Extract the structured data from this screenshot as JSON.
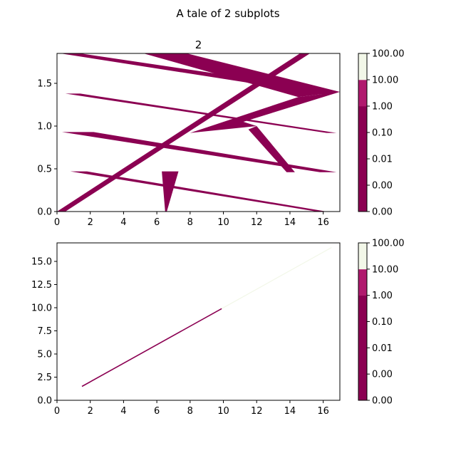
{
  "figure": {
    "suptitle": "A tale of 2 subplots"
  },
  "colors": {
    "dark": "#8b0052",
    "mid": "#b01a6e",
    "light": "#f2f7e8",
    "bg": "#ffffff"
  },
  "chart_data": [
    {
      "type": "contourf",
      "title": "2",
      "xlim": [
        0,
        17
      ],
      "ylim": [
        0,
        1.85
      ],
      "xticks": [
        "0",
        "2",
        "4",
        "6",
        "8",
        "10",
        "12",
        "14",
        "16"
      ],
      "yticks": [
        "0.0",
        "0.5",
        "1.0",
        "1.5"
      ],
      "x_tick_values": [
        0,
        2,
        4,
        6,
        8,
        10,
        12,
        14,
        16
      ],
      "y_tick_values": [
        0,
        0.5,
        1.0,
        1.5
      ],
      "filled_regions": [
        [
          [
            0,
            0
          ],
          [
            0.5,
            0
          ],
          [
            15.2,
            1.85
          ],
          [
            14.6,
            1.85
          ]
        ],
        [
          [
            0.2,
            1.85
          ],
          [
            1.4,
            1.85
          ],
          [
            17,
            1.4
          ],
          [
            16.0,
            1.37
          ]
        ],
        [
          [
            5.2,
            1.85
          ],
          [
            7.8,
            1.85
          ],
          [
            17,
            1.4
          ],
          [
            14.5,
            1.34
          ]
        ],
        [
          [
            0.5,
            1.38
          ],
          [
            1.4,
            1.38
          ],
          [
            16.8,
            0.92
          ],
          [
            16.2,
            0.92
          ]
        ],
        [
          [
            8.0,
            0.92
          ],
          [
            14.5,
            1.34
          ],
          [
            17,
            1.4
          ],
          [
            11.2,
            1.05
          ],
          [
            12.0,
            1.0
          ]
        ],
        [
          [
            11.5,
            0.96
          ],
          [
            12.0,
            1.0
          ],
          [
            14.3,
            0.46
          ],
          [
            13.8,
            0.46
          ]
        ],
        [
          [
            0.3,
            0.93
          ],
          [
            2.2,
            0.93
          ],
          [
            16.8,
            0.46
          ],
          [
            15.8,
            0.46
          ]
        ],
        [
          [
            0.8,
            0.47
          ],
          [
            1.8,
            0.47
          ],
          [
            16.2,
            0.0
          ],
          [
            15.6,
            0.0
          ]
        ],
        [
          [
            6.3,
            0.47
          ],
          [
            7.3,
            0.47
          ],
          [
            6.6,
            0.0
          ],
          [
            6.5,
            0.0
          ]
        ]
      ],
      "colorbar": {
        "ticks": [
          "0.00",
          "0.00",
          "0.01",
          "0.10",
          "1.00",
          "10.00",
          "100.00"
        ],
        "bands": [
          "dark",
          "dark",
          "dark",
          "dark",
          "mid",
          "light"
        ]
      }
    },
    {
      "type": "contourf",
      "title": "",
      "xlim": [
        0,
        17
      ],
      "ylim": [
        0,
        17
      ],
      "xticks": [
        "0",
        "2",
        "4",
        "6",
        "8",
        "10",
        "12",
        "14",
        "16"
      ],
      "yticks": [
        "0.0",
        "2.5",
        "5.0",
        "7.5",
        "10.0",
        "12.5",
        "15.0"
      ],
      "x_tick_values": [
        0,
        2,
        4,
        6,
        8,
        10,
        12,
        14,
        16
      ],
      "y_tick_values": [
        0,
        2.5,
        5,
        7.5,
        10,
        12.5,
        15
      ],
      "lines": [
        {
          "from": [
            1.5,
            1.5
          ],
          "to": [
            9.9,
            9.9
          ],
          "color": "dark"
        },
        {
          "from": [
            9.9,
            9.9
          ],
          "to": [
            16.5,
            16.5
          ],
          "color": "light"
        }
      ],
      "colorbar": {
        "ticks": [
          "0.00",
          "0.00",
          "0.01",
          "0.10",
          "1.00",
          "10.00",
          "100.00"
        ],
        "bands": [
          "dark",
          "dark",
          "dark",
          "dark",
          "mid",
          "light"
        ]
      }
    }
  ]
}
